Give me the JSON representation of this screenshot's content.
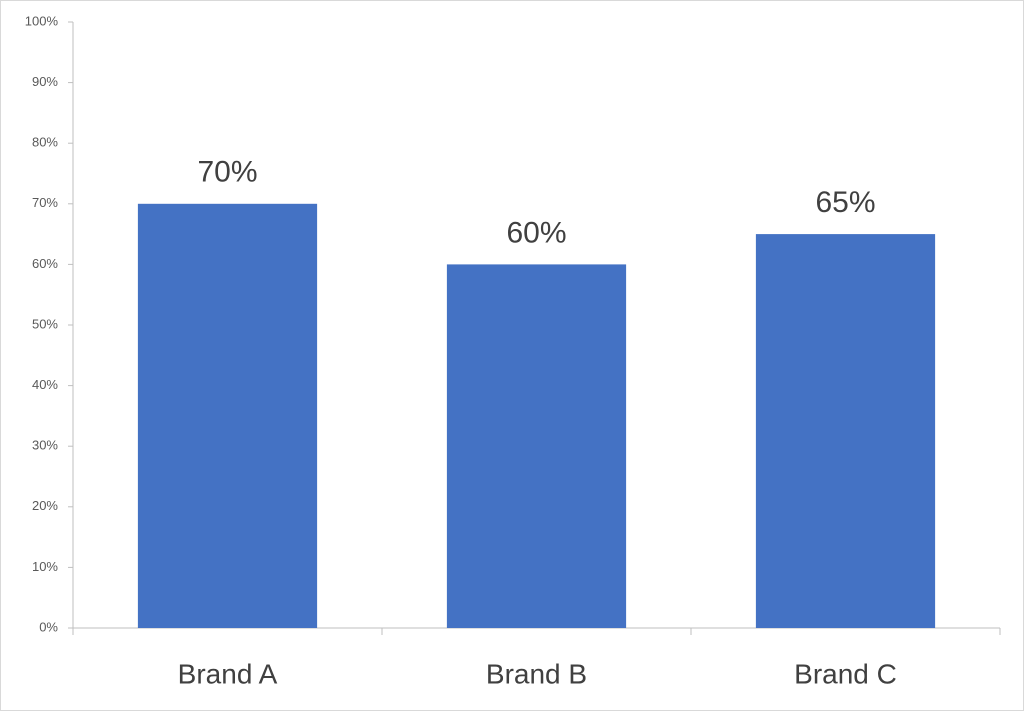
{
  "chart_data": {
    "type": "bar",
    "categories": [
      "Brand A",
      "Brand B",
      "Brand C"
    ],
    "values": [
      70,
      60,
      65
    ],
    "value_labels": [
      "70%",
      "60%",
      "65%"
    ],
    "color": "#4472c4",
    "ylim": [
      0,
      100
    ],
    "yticks": [
      {
        "value": 0,
        "label": "0%"
      },
      {
        "value": 10,
        "label": "10%"
      },
      {
        "value": 20,
        "label": "20%"
      },
      {
        "value": 30,
        "label": "30%"
      },
      {
        "value": 40,
        "label": "40%"
      },
      {
        "value": 50,
        "label": "50%"
      },
      {
        "value": 60,
        "label": "60%"
      },
      {
        "value": 70,
        "label": "70%"
      },
      {
        "value": 80,
        "label": "80%"
      },
      {
        "value": 90,
        "label": "90%"
      },
      {
        "value": 100,
        "label": "100%"
      }
    ]
  }
}
